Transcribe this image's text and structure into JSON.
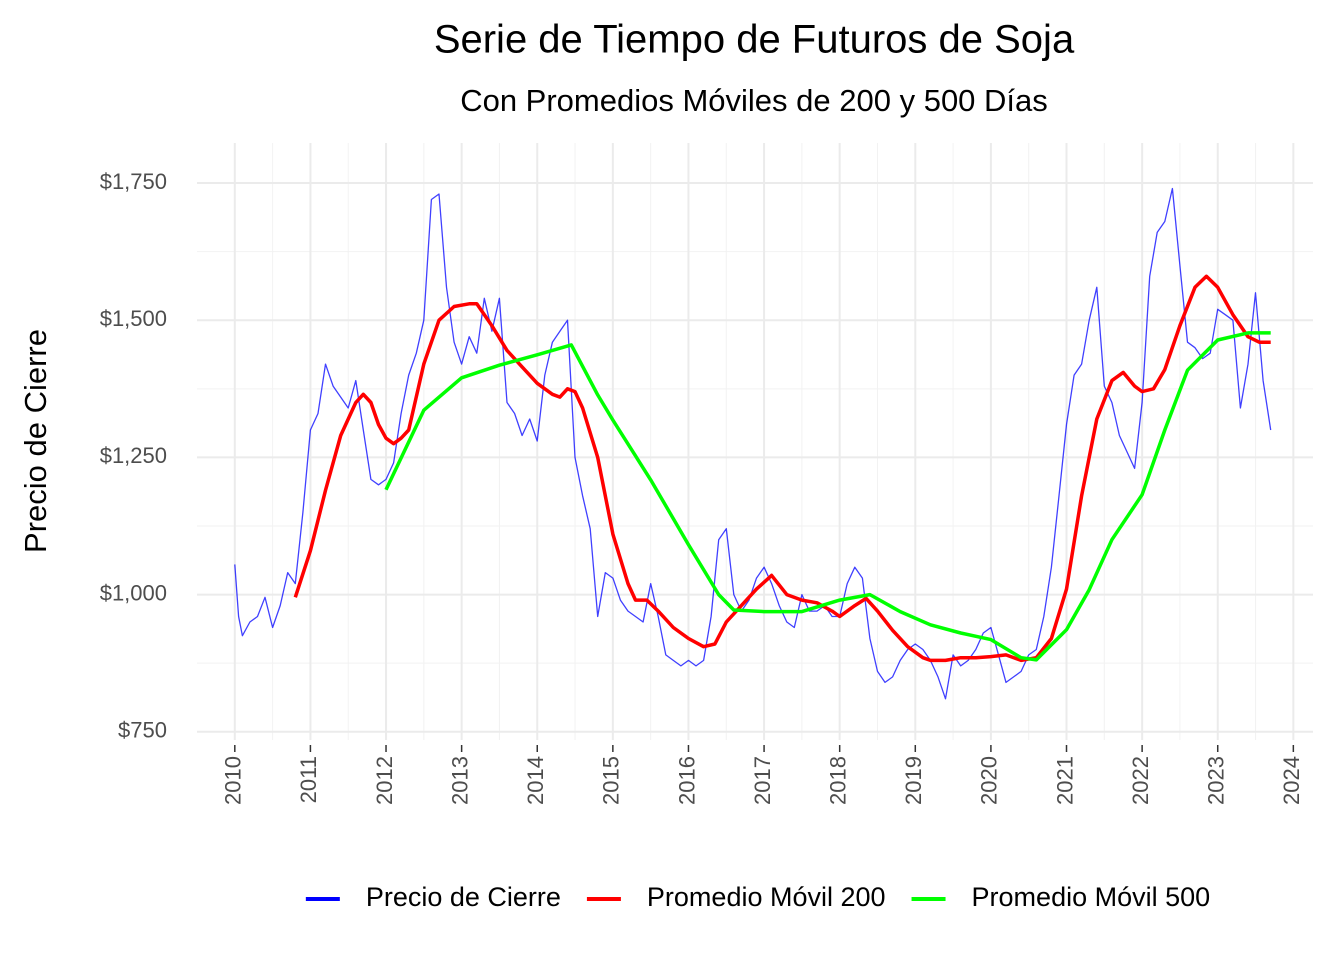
{
  "chart_data": {
    "type": "line",
    "title": "Serie de Tiempo de Futuros de Soja",
    "subtitle": "Con Promedios Móviles de 200 y 500 Días",
    "y_label": "Precio de Cierre",
    "xlim": [
      2009.5,
      2024.26
    ],
    "xticks": [
      2010,
      2011,
      2012,
      2013,
      2014,
      2015,
      2016,
      2017,
      2018,
      2019,
      2020,
      2021,
      2022,
      2023,
      2024
    ],
    "ylim": [
      735,
      1823
    ],
    "yticks": [
      {
        "value": 750,
        "label": "$750"
      },
      {
        "value": 1000,
        "label": "$1,000"
      },
      {
        "value": 1250,
        "label": "$1,250"
      },
      {
        "value": 1500,
        "label": "$1,500"
      },
      {
        "value": 1750,
        "label": "$1,750"
      }
    ],
    "grid": true,
    "legend": "bottom",
    "series": [
      {
        "name": "Precio de Cierre",
        "color": "#0000ff",
        "x": [
          2010.0,
          2010.05,
          2010.1,
          2010.2,
          2010.3,
          2010.4,
          2010.5,
          2010.6,
          2010.7,
          2010.8,
          2010.9,
          2011.0,
          2011.1,
          2011.2,
          2011.3,
          2011.4,
          2011.5,
          2011.6,
          2011.7,
          2011.8,
          2011.9,
          2012.0,
          2012.1,
          2012.2,
          2012.3,
          2012.4,
          2012.5,
          2012.6,
          2012.7,
          2012.8,
          2012.9,
          2013.0,
          2013.1,
          2013.2,
          2013.3,
          2013.4,
          2013.5,
          2013.6,
          2013.7,
          2013.8,
          2013.9,
          2014.0,
          2014.1,
          2014.2,
          2014.3,
          2014.4,
          2014.5,
          2014.6,
          2014.7,
          2014.8,
          2014.9,
          2015.0,
          2015.1,
          2015.2,
          2015.3,
          2015.4,
          2015.5,
          2015.6,
          2015.7,
          2015.8,
          2015.9,
          2016.0,
          2016.1,
          2016.2,
          2016.3,
          2016.4,
          2016.5,
          2016.6,
          2016.7,
          2016.8,
          2016.9,
          2017.0,
          2017.1,
          2017.2,
          2017.3,
          2017.4,
          2017.5,
          2017.6,
          2017.7,
          2017.8,
          2017.9,
          2018.0,
          2018.1,
          2018.2,
          2018.3,
          2018.4,
          2018.5,
          2018.6,
          2018.7,
          2018.8,
          2018.9,
          2019.0,
          2019.1,
          2019.2,
          2019.3,
          2019.4,
          2019.5,
          2019.6,
          2019.7,
          2019.8,
          2019.9,
          2020.0,
          2020.1,
          2020.2,
          2020.3,
          2020.4,
          2020.5,
          2020.6,
          2020.7,
          2020.8,
          2020.9,
          2021.0,
          2021.1,
          2021.2,
          2021.3,
          2021.4,
          2021.5,
          2021.6,
          2021.7,
          2021.8,
          2021.9,
          2022.0,
          2022.1,
          2022.2,
          2022.3,
          2022.4,
          2022.5,
          2022.6,
          2022.7,
          2022.8,
          2022.9,
          2023.0,
          2023.1,
          2023.2,
          2023.3,
          2023.4,
          2023.5,
          2023.6,
          2023.7
        ],
        "values": [
          1055,
          960,
          925,
          950,
          960,
          995,
          940,
          980,
          1040,
          1020,
          1150,
          1300,
          1330,
          1420,
          1380,
          1360,
          1340,
          1390,
          1300,
          1210,
          1200,
          1210,
          1240,
          1330,
          1400,
          1440,
          1500,
          1720,
          1730,
          1560,
          1460,
          1420,
          1470,
          1440,
          1540,
          1480,
          1540,
          1350,
          1330,
          1290,
          1320,
          1280,
          1400,
          1460,
          1480,
          1500,
          1250,
          1180,
          1120,
          960,
          1040,
          1030,
          990,
          970,
          960,
          950,
          1020,
          960,
          890,
          880,
          870,
          880,
          870,
          880,
          960,
          1100,
          1120,
          1000,
          970,
          990,
          1030,
          1050,
          1020,
          980,
          950,
          940,
          1000,
          970,
          970,
          980,
          960,
          960,
          1020,
          1050,
          1030,
          920,
          860,
          840,
          850,
          880,
          900,
          910,
          900,
          880,
          850,
          810,
          890,
          870,
          880,
          900,
          930,
          940,
          890,
          840,
          850,
          860,
          890,
          900,
          960,
          1050,
          1180,
          1310,
          1400,
          1420,
          1500,
          1560,
          1380,
          1350,
          1290,
          1260,
          1230,
          1350,
          1580,
          1660,
          1680,
          1740,
          1600,
          1460,
          1450,
          1430,
          1440,
          1520,
          1510,
          1500,
          1340,
          1420,
          1550,
          1390,
          1300
        ]
      },
      {
        "name": "Promedio Móvil 200",
        "color": "#ff0000",
        "x": [
          2010.8,
          2011.0,
          2011.2,
          2011.4,
          2011.6,
          2011.7,
          2011.8,
          2011.9,
          2012.0,
          2012.1,
          2012.2,
          2012.3,
          2012.5,
          2012.7,
          2012.9,
          2013.1,
          2013.2,
          2013.4,
          2013.6,
          2013.8,
          2014.0,
          2014.2,
          2014.3,
          2014.4,
          2014.5,
          2014.6,
          2014.8,
          2015.0,
          2015.2,
          2015.3,
          2015.45,
          2015.6,
          2015.8,
          2016.0,
          2016.2,
          2016.35,
          2016.5,
          2016.7,
          2016.9,
          2017.1,
          2017.3,
          2017.5,
          2017.7,
          2017.9,
          2018.0,
          2018.2,
          2018.35,
          2018.5,
          2018.7,
          2018.9,
          2019.1,
          2019.2,
          2019.4,
          2019.6,
          2019.8,
          2020.0,
          2020.2,
          2020.4,
          2020.6,
          2020.8,
          2021.0,
          2021.2,
          2021.4,
          2021.6,
          2021.75,
          2021.9,
          2022.0,
          2022.15,
          2022.3,
          2022.5,
          2022.7,
          2022.85,
          2023.0,
          2023.2,
          2023.4,
          2023.55,
          2023.7
        ],
        "values": [
          995,
          1080,
          1190,
          1290,
          1350,
          1365,
          1350,
          1310,
          1285,
          1275,
          1285,
          1300,
          1420,
          1500,
          1525,
          1530,
          1530,
          1490,
          1445,
          1415,
          1385,
          1365,
          1360,
          1375,
          1370,
          1340,
          1250,
          1110,
          1020,
          990,
          990,
          970,
          940,
          920,
          905,
          910,
          950,
          980,
          1010,
          1035,
          1000,
          990,
          985,
          970,
          960,
          980,
          993,
          970,
          935,
          905,
          885,
          880,
          880,
          885,
          885,
          887,
          890,
          880,
          885,
          920,
          1010,
          1180,
          1320,
          1390,
          1405,
          1380,
          1370,
          1375,
          1410,
          1490,
          1560,
          1580,
          1560,
          1510,
          1470,
          1460,
          1460
        ]
      },
      {
        "name": "Promedio Móvil 500",
        "color": "#00ff00",
        "x": [
          2012.0,
          2012.5,
          2013.0,
          2013.5,
          2014.0,
          2014.45,
          2014.8,
          2015.0,
          2015.5,
          2016.0,
          2016.4,
          2016.6,
          2017.0,
          2017.5,
          2018.0,
          2018.4,
          2018.8,
          2019.2,
          2019.6,
          2020.0,
          2020.4,
          2020.6,
          2021.0,
          2021.3,
          2021.6,
          2022.0,
          2022.3,
          2022.6,
          2023.0,
          2023.4,
          2023.7
        ],
        "values": [
          1191,
          1336,
          1395,
          1418,
          1437,
          1455,
          1364,
          1318,
          1209,
          1091,
          1000,
          972,
          969,
          969,
          990,
          1000,
          969,
          945,
          930,
          918,
          885,
          881,
          936,
          1009,
          1100,
          1182,
          1300,
          1409,
          1464,
          1477,
          1477
        ]
      }
    ]
  }
}
